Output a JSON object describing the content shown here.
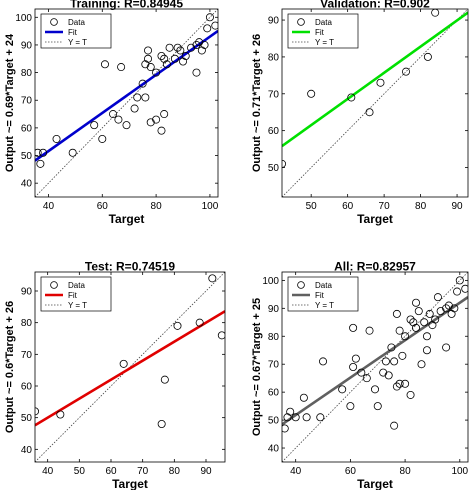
{
  "chart_data": [
    {
      "type": "scatter",
      "title": "Training: R=0.84945",
      "xlabel": "Target",
      "ylabel": "Output ~= 0.69*Target + 24",
      "xlim": [
        35,
        103
      ],
      "ylim": [
        35,
        103
      ],
      "xticks": [
        40,
        60,
        80,
        100
      ],
      "yticks": [
        40,
        50,
        60,
        70,
        80,
        90,
        100
      ],
      "fit": {
        "slope": 0.69,
        "intercept": 24,
        "color": "#0000cc"
      },
      "legend": {
        "position": "top-left",
        "entries": [
          "Data",
          "Fit",
          "Y = T"
        ]
      },
      "grid": false,
      "points": [
        [
          36,
          51
        ],
        [
          38,
          51
        ],
        [
          37,
          47
        ],
        [
          43,
          56
        ],
        [
          49,
          51
        ],
        [
          57,
          61
        ],
        [
          60,
          56
        ],
        [
          61,
          83
        ],
        [
          67,
          82
        ],
        [
          64,
          65
        ],
        [
          66,
          63
        ],
        [
          69,
          61
        ],
        [
          72,
          67
        ],
        [
          73,
          71
        ],
        [
          76,
          71
        ],
        [
          75,
          76
        ],
        [
          76,
          83
        ],
        [
          77,
          88
        ],
        [
          77,
          85
        ],
        [
          78,
          82
        ],
        [
          80,
          80
        ],
        [
          78,
          62
        ],
        [
          80,
          63
        ],
        [
          83,
          65
        ],
        [
          82,
          59
        ],
        [
          83,
          85
        ],
        [
          84,
          83
        ],
        [
          82,
          86
        ],
        [
          85,
          89
        ],
        [
          87,
          85
        ],
        [
          89,
          88
        ],
        [
          91,
          86
        ],
        [
          93,
          89
        ],
        [
          95,
          90
        ],
        [
          97,
          88
        ],
        [
          96,
          91
        ],
        [
          99,
          96
        ],
        [
          98,
          90
        ],
        [
          100,
          100
        ],
        [
          102,
          97
        ],
        [
          95,
          80
        ],
        [
          90,
          84
        ],
        [
          88,
          89
        ]
      ]
    },
    {
      "type": "scatter",
      "title": "Validation: R=0.902",
      "xlabel": "Target",
      "ylabel": "Output ~= 0.71*Target + 26",
      "xlim": [
        42,
        93
      ],
      "ylim": [
        42,
        93
      ],
      "xticks": [
        50,
        60,
        70,
        80,
        90
      ],
      "yticks": [
        50,
        60,
        70,
        80,
        90
      ],
      "fit": {
        "slope": 0.71,
        "intercept": 26,
        "color": "#00e000"
      },
      "legend": {
        "position": "top-left",
        "entries": [
          "Data",
          "Fit",
          "Y = T"
        ]
      },
      "grid": false,
      "points": [
        [
          42,
          51
        ],
        [
          50,
          70
        ],
        [
          61,
          69
        ],
        [
          66,
          65
        ],
        [
          69,
          73
        ],
        [
          76,
          76
        ],
        [
          82,
          80
        ],
        [
          84,
          92
        ]
      ]
    },
    {
      "type": "scatter",
      "title": "Test: R=0.74519",
      "xlabel": "Target",
      "ylabel": "Output ~= 0.6*Target + 26",
      "xlim": [
        36,
        96
      ],
      "ylim": [
        36,
        96
      ],
      "xticks": [
        40,
        50,
        60,
        70,
        80,
        90
      ],
      "yticks": [
        40,
        50,
        60,
        70,
        80,
        90
      ],
      "fit": {
        "slope": 0.6,
        "intercept": 26,
        "color": "#e00000"
      },
      "legend": {
        "position": "top-left",
        "entries": [
          "Data",
          "Fit",
          "Y = T"
        ]
      },
      "grid": false,
      "points": [
        [
          36,
          52
        ],
        [
          44,
          51
        ],
        [
          64,
          67
        ],
        [
          76,
          48
        ],
        [
          77,
          62
        ],
        [
          81,
          79
        ],
        [
          88,
          80
        ],
        [
          92,
          94
        ],
        [
          95,
          76
        ]
      ]
    },
    {
      "type": "scatter",
      "title": "All: R=0.82957",
      "xlabel": "Target",
      "ylabel": "Output ~= 0.67*Target + 25",
      "xlim": [
        35,
        103
      ],
      "ylim": [
        35,
        103
      ],
      "xticks": [
        40,
        60,
        80,
        100
      ],
      "yticks": [
        40,
        50,
        60,
        70,
        80,
        90,
        100
      ],
      "fit": {
        "slope": 0.67,
        "intercept": 25,
        "color": "#606060"
      },
      "legend": {
        "position": "top-left",
        "entries": [
          "Data",
          "Fit",
          "Y = T"
        ]
      },
      "grid": false,
      "points": [
        [
          36,
          47
        ],
        [
          37,
          51
        ],
        [
          38,
          53
        ],
        [
          40,
          51
        ],
        [
          43,
          58
        ],
        [
          44,
          51
        ],
        [
          49,
          51
        ],
        [
          50,
          71
        ],
        [
          57,
          61
        ],
        [
          60,
          55
        ],
        [
          61,
          69
        ],
        [
          61,
          83
        ],
        [
          64,
          67
        ],
        [
          66,
          65
        ],
        [
          67,
          82
        ],
        [
          69,
          61
        ],
        [
          72,
          67
        ],
        [
          73,
          71
        ],
        [
          75,
          76
        ],
        [
          76,
          48
        ],
        [
          76,
          71
        ],
        [
          77,
          62
        ],
        [
          77,
          88
        ],
        [
          78,
          82
        ],
        [
          78,
          63
        ],
        [
          80,
          80
        ],
        [
          80,
          63
        ],
        [
          82,
          59
        ],
        [
          82,
          86
        ],
        [
          83,
          85
        ],
        [
          84,
          83
        ],
        [
          84,
          92
        ],
        [
          85,
          89
        ],
        [
          87,
          85
        ],
        [
          88,
          80
        ],
        [
          89,
          88
        ],
        [
          91,
          86
        ],
        [
          92,
          94
        ],
        [
          93,
          89
        ],
        [
          95,
          90
        ],
        [
          95,
          76
        ],
        [
          96,
          91
        ],
        [
          97,
          88
        ],
        [
          98,
          90
        ],
        [
          99,
          96
        ],
        [
          100,
          100
        ],
        [
          102,
          97
        ],
        [
          90,
          84
        ],
        [
          88,
          75
        ],
        [
          70,
          55
        ],
        [
          62,
          72
        ],
        [
          79,
          73
        ],
        [
          74,
          66
        ],
        [
          86,
          70
        ]
      ]
    }
  ]
}
